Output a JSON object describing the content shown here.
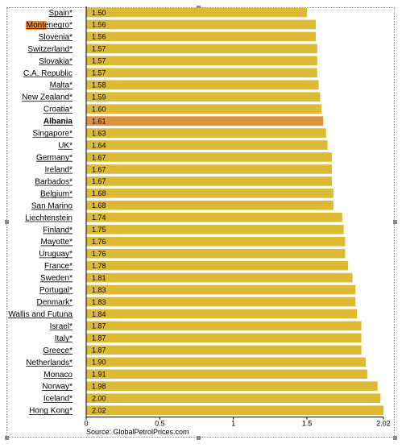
{
  "chart_data": {
    "type": "bar",
    "orientation": "horizontal",
    "categories": [
      "Spain*",
      "Montenegro*",
      "Slovenia*",
      "Switzerland*",
      "Slovakia*",
      "C.A. Republic",
      "Malta*",
      "New Zealand*",
      "Croatia*",
      "Albania",
      "Singapore*",
      "UK*",
      "Germany*",
      "Ireland*",
      "Barbados*",
      "Belgium*",
      "San Marino",
      "Liechtenstein",
      "Finland*",
      "Mayotte*",
      "Uruguay*",
      "France*",
      "Sweden*",
      "Portugal*",
      "Denmark*",
      "Wallis and Futuna",
      "Israel*",
      "Italy*",
      "Greece*",
      "Netherlands*",
      "Monaco",
      "Norway*",
      "Iceland*",
      "Hong Kong*"
    ],
    "values": [
      1.5,
      1.56,
      1.56,
      1.57,
      1.57,
      1.57,
      1.58,
      1.59,
      1.6,
      1.61,
      1.63,
      1.64,
      1.67,
      1.67,
      1.67,
      1.68,
      1.68,
      1.74,
      1.75,
      1.76,
      1.76,
      1.78,
      1.81,
      1.83,
      1.83,
      1.84,
      1.87,
      1.87,
      1.87,
      1.9,
      1.91,
      1.98,
      2.0,
      2.02
    ],
    "value_labels": [
      "1.50",
      "1.56",
      "1.56",
      "1.57",
      "1.57",
      "1.57",
      "1.58",
      "1.59",
      "1.60",
      "1.61",
      "1.63",
      "1.64",
      "1.67",
      "1.67",
      "1.67",
      "1.68",
      "1.68",
      "1.74",
      "1.75",
      "1.76",
      "1.76",
      "1.78",
      "1.81",
      "1.83",
      "1.83",
      "1.84",
      "1.87",
      "1.87",
      "1.87",
      "1.90",
      "1.91",
      "1.98",
      "2.00",
      "2.02"
    ],
    "highlight_category": "Albania",
    "highlight_label_category": "Montenegro*",
    "underlined_categories": [
      "Spain*",
      "Montenegro*",
      "Slovenia*",
      "Switzerland*",
      "Slovakia*",
      "C.A. Republic",
      "Malta*",
      "New Zealand*",
      "Croatia*",
      "Albania",
      "Singapore*",
      "UK*",
      "Germany*",
      "Ireland*",
      "Barbados*",
      "Belgium*",
      "San Marino",
      "Liechtenstein",
      "Finland*",
      "Mayotte*",
      "Uruguay*",
      "France*",
      "Sweden*",
      "Portugal*",
      "Denmark*",
      "Wallis and Futuna",
      "Israel*",
      "Italy*",
      "Greece*",
      "Netherlands*",
      "Monaco",
      "Norway*",
      "Iceland*",
      "Hong Kong*"
    ],
    "bold_categories": [
      "Albania"
    ],
    "xlim": [
      0,
      2.02
    ],
    "xticks": [
      0,
      0.5,
      1,
      1.5,
      2.02
    ],
    "xtick_labels": [
      "0",
      "0.5",
      "1",
      "1.5",
      "2.02"
    ],
    "grid": false,
    "source": "Source: GlobalPetrolPrices.com",
    "colors": {
      "bar": "#DDBA33",
      "bar_highlight": "#E08F3B",
      "label_highlight": "#E08F3B",
      "axis": "#000000"
    }
  }
}
